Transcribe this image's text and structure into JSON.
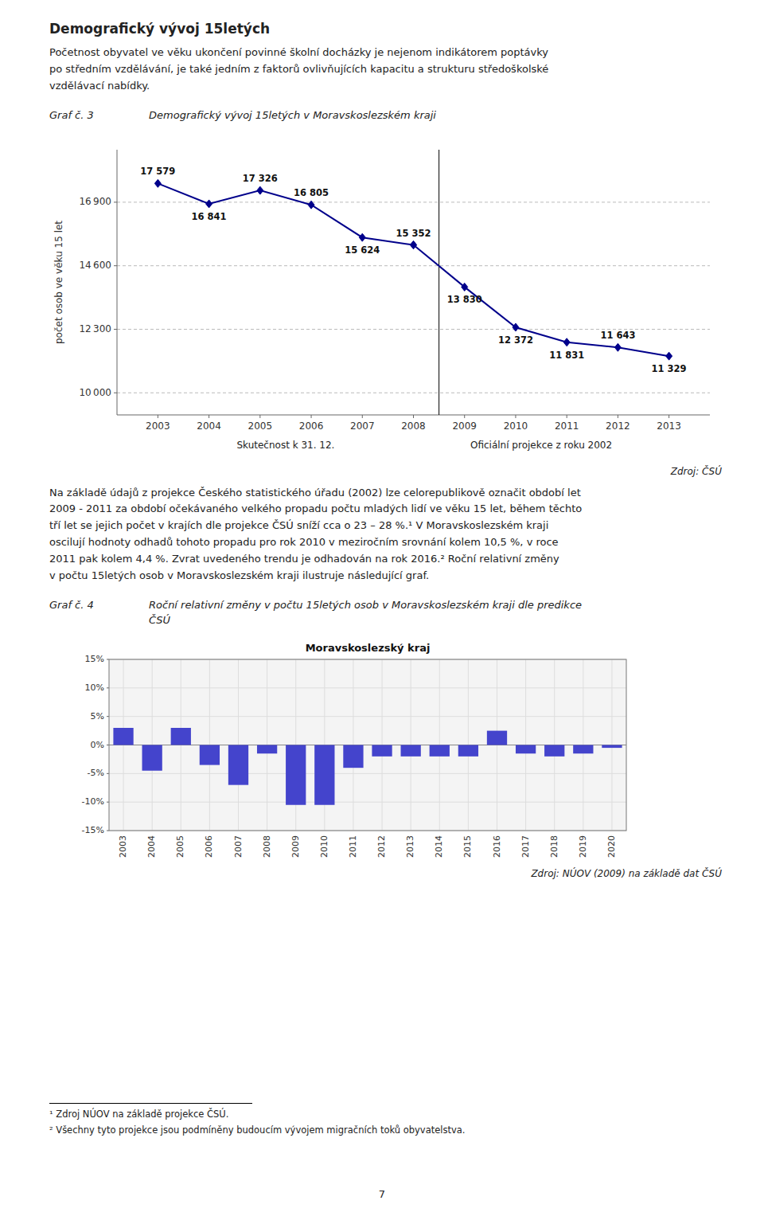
{
  "page_title": "Demografický vývoj 15letých",
  "paragraph": "Početnost obyvatel ve věku ukončení povinné školní docházky je nejenom indikátorem poptávky\npo středním vzdělávání, je také jedním z faktorů ovlivňujících kapacitu a strukturu středoškolské\nvzdělávací nabídky.",
  "text_body": "Na základě údajů z projekce Českého statistického úřadu (2002) lze celorepublikově označit období let\n2009 - 2011 za období očekávaného velkého propadu počtu mladých lidí ve věku 15 let, během těchto\ntří let se jejich počet v krajích dle projekce ČSÚ sníží cca o 23 – 28 %.¹  V Moravskoslezském kraji\noscilují hodnoty odhadů tohoto propadu  pro rok 2010 v meziročním srovnání kolem 10,5 %, v roce\n2011 pak  kolem  4,4 %. Zvrat uvedeného trendu je odhadován na rok 2016.² Roční relativní změny\nv počtu 15letých osob v Moravskoslezském kraji ilustruje následující graf.",
  "footnotes": [
    "¹ Zdroj NÚOV na základě projekce ČSÚ.",
    "² Všechny tyto projekce jsou podmíněny budoucím vývojem migračních toků obyvatelstva."
  ],
  "page_number": "7",
  "chart_data": [
    {
      "type": "line",
      "label": "Graf č. 3",
      "title": "Demografický vývoj 15letých v Moravskoslezském kraji",
      "y_label": "počet osob ve věku 15 let",
      "series": [
        {
          "name": "Skutečnost k 31. 12.",
          "color": "#00008B",
          "marker": "diamond",
          "x": [
            2003,
            2004,
            2005,
            2006,
            2007,
            2008
          ],
          "values": [
            17579,
            16841,
            17326,
            16805,
            15624,
            15352
          ],
          "value_labels": [
            "17 579",
            "16 841",
            "17 326",
            "16 805",
            "15 624",
            "15 352"
          ]
        },
        {
          "name": "Oficiální projekce z roku 2002",
          "color": "#00008B",
          "marker": "diamond",
          "x": [
            2008,
            2009,
            2010,
            2011,
            2012,
            2013
          ],
          "values": [
            15352,
            13830,
            12372,
            11831,
            11643,
            11329
          ],
          "value_labels": [
            null,
            "13 830",
            "12 372",
            "11 831",
            "11 643",
            "11 329"
          ]
        }
      ],
      "xlim": [
        2002.2,
        2013.8
      ],
      "xticks": [
        2003,
        2004,
        2005,
        2006,
        2007,
        2008,
        2009,
        2010,
        2011,
        2012,
        2013
      ],
      "ylim": [
        9200,
        18800
      ],
      "yticks": [
        {
          "value": 10000,
          "label": "10 000"
        },
        {
          "value": 12300,
          "label": "12 300"
        },
        {
          "value": 14600,
          "label": "14 600"
        },
        {
          "value": 16900,
          "label": "16 900"
        }
      ],
      "grid": true,
      "data_labels": true,
      "vline": 2008.5,
      "source": "Zdroj: ČSÚ"
    },
    {
      "type": "bar",
      "label": "Graf č. 4",
      "caption": "Roční relativní změny v počtu 15letých osob v Moravskoslezském kraji dle predikce\nČSÚ",
      "title": "Moravskoslezský kraj",
      "categories": [
        "2003",
        "2004",
        "2005",
        "2006",
        "2007",
        "2008",
        "2009",
        "2010",
        "2011",
        "2012",
        "2013",
        "2014",
        "2015",
        "2016",
        "2017",
        "2018",
        "2019",
        "2020"
      ],
      "values": [
        3.0,
        -4.5,
        3.0,
        -3.5,
        -7.0,
        -1.5,
        -10.5,
        -10.5,
        -4.0,
        -2.0,
        -2.0,
        -2.0,
        -2.0,
        2.5,
        -1.5,
        -2.0,
        -1.5,
        -0.5
      ],
      "color": "#4444CC",
      "ylim": [
        -15,
        15
      ],
      "yticks": [
        {
          "value": -15,
          "label": "-15%"
        },
        {
          "value": -10,
          "label": "-10%"
        },
        {
          "value": -5,
          "label": "-5%"
        },
        {
          "value": 0,
          "label": "0%"
        },
        {
          "value": 5,
          "label": "5%"
        },
        {
          "value": 10,
          "label": "10%"
        },
        {
          "value": 15,
          "label": "15%"
        }
      ],
      "grid": true,
      "source": "Zdroj: NÚOV (2009) na základě dat ČSÚ"
    }
  ]
}
